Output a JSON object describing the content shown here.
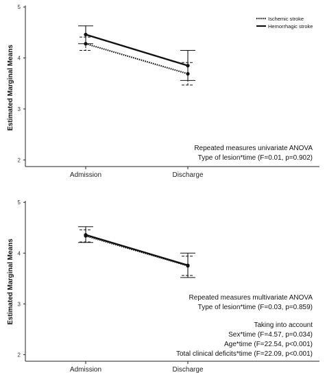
{
  "chart_data": [
    {
      "type": "line",
      "ylabel": "Estimated Marginal Means",
      "categories": [
        "Admission",
        "Discharge"
      ],
      "ylim": [
        1.85,
        5.1
      ],
      "yticks": [
        "5",
        "4",
        "3",
        "2"
      ],
      "grid": false,
      "legend": "top-right",
      "series": [
        {
          "name": "Ischemic stroke",
          "style": "dotted",
          "values": [
            4.28,
            3.69
          ],
          "ci_lower": [
            4.15,
            3.47
          ],
          "ci_upper": [
            4.41,
            3.91
          ]
        },
        {
          "name": "Hemorrhagic stroke",
          "style": "solid",
          "values": [
            4.46,
            3.85
          ],
          "ci_lower": [
            4.28,
            3.56
          ],
          "ci_upper": [
            4.63,
            4.15
          ]
        }
      ],
      "annotations": [
        "Repeated measures univariate ANOVA",
        "Type of lesion*time (F=0.01, p=0.902)"
      ]
    },
    {
      "type": "line",
      "ylabel": "Estimated Marginal Means",
      "categories": [
        "Admission",
        "Discharge"
      ],
      "ylim": [
        1.85,
        5.1
      ],
      "yticks": [
        "5",
        "4",
        "3",
        "2"
      ],
      "grid": false,
      "legend": "",
      "series": [
        {
          "name": "Ischemic stroke",
          "style": "dotted",
          "values": [
            4.34,
            3.75
          ],
          "ci_lower": [
            4.22,
            3.56
          ],
          "ci_upper": [
            4.46,
            3.94
          ]
        },
        {
          "name": "Hemorrhagic stroke",
          "style": "solid",
          "values": [
            4.36,
            3.76
          ],
          "ci_lower": [
            4.21,
            3.52
          ],
          "ci_upper": [
            4.52,
            4.0
          ]
        }
      ],
      "annotations": [
        "Repeated measures multivariate ANOVA",
        "Type of lesion*time (F=0.03, p=0.859)",
        "",
        "Taking into account",
        "Sex*time (F=4.57, p=0.034)",
        "Age*time (F=22.54, p<0.001)",
        "Total clinical deficits*time (F=22.09, p<0.001)"
      ]
    }
  ]
}
